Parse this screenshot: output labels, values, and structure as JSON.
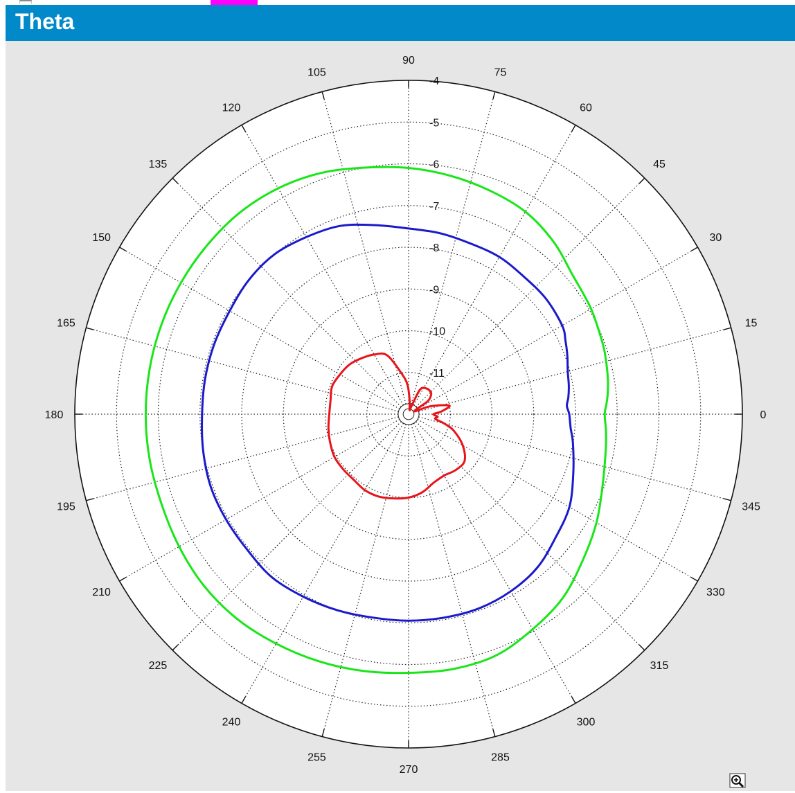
{
  "header": {
    "title": "Theta"
  },
  "toolbar": {
    "zoom_icon": "zoom-in-icon"
  },
  "colors": {
    "header_bg": "#0189c9",
    "panel_bg": "#e6e6e6",
    "red": "#e8141a",
    "blue": "#1a1acc",
    "green": "#19e619"
  },
  "chart_data": {
    "type": "polar",
    "title": "Theta",
    "angle_unit": "degrees",
    "angle_ticks": [
      0,
      15,
      30,
      45,
      60,
      75,
      90,
      105,
      120,
      135,
      150,
      165,
      180,
      195,
      210,
      225,
      240,
      255,
      270,
      285,
      300,
      315,
      330,
      345
    ],
    "radial_range": [
      -12,
      -4
    ],
    "radial_ticks": [
      -4,
      -5,
      -6,
      -7,
      -8,
      -9,
      -10,
      -11
    ],
    "grid": true,
    "series": [
      {
        "color": "#e8141a",
        "points": [
          [
            0,
            -11.4
          ],
          [
            5,
            -11.2
          ],
          [
            12,
            -11.0
          ],
          [
            20,
            -11.45
          ],
          [
            27,
            -11.85
          ],
          [
            34,
            -11.45
          ],
          [
            40,
            -11.3
          ],
          [
            45,
            -11.25
          ],
          [
            55,
            -11.25
          ],
          [
            65,
            -11.35
          ],
          [
            70,
            -11.8
          ],
          [
            77,
            -11.9
          ],
          [
            85,
            -11.7
          ],
          [
            92,
            -11.3
          ],
          [
            100,
            -11.0
          ],
          [
            110,
            -10.5
          ],
          [
            120,
            -10.35
          ],
          [
            130,
            -10.25
          ],
          [
            140,
            -10.15
          ],
          [
            150,
            -10.1
          ],
          [
            160,
            -10.05
          ],
          [
            170,
            -10.1
          ],
          [
            180,
            -10.1
          ],
          [
            190,
            -10.05
          ],
          [
            200,
            -10.0
          ],
          [
            210,
            -9.95
          ],
          [
            220,
            -9.95
          ],
          [
            230,
            -9.95
          ],
          [
            240,
            -9.9
          ],
          [
            250,
            -9.9
          ],
          [
            260,
            -9.95
          ],
          [
            270,
            -10.0
          ],
          [
            280,
            -10.1
          ],
          [
            290,
            -10.25
          ],
          [
            300,
            -10.3
          ],
          [
            310,
            -10.25
          ],
          [
            320,
            -10.25
          ],
          [
            330,
            -10.5
          ],
          [
            340,
            -10.85
          ],
          [
            345,
            -11.1
          ],
          [
            350,
            -11.35
          ],
          [
            355,
            -11.3
          ],
          [
            360,
            -11.4
          ]
        ]
      },
      {
        "color": "#1a1acc",
        "points": [
          [
            0,
            -8.15
          ],
          [
            3,
            -8.2
          ],
          [
            6,
            -8.15
          ],
          [
            10,
            -8.1
          ],
          [
            15,
            -8.05
          ],
          [
            20,
            -7.95
          ],
          [
            25,
            -7.85
          ],
          [
            30,
            -7.75
          ],
          [
            40,
            -7.7
          ],
          [
            50,
            -7.7
          ],
          [
            60,
            -7.65
          ],
          [
            70,
            -7.65
          ],
          [
            80,
            -7.6
          ],
          [
            90,
            -7.55
          ],
          [
            100,
            -7.4
          ],
          [
            110,
            -7.2
          ],
          [
            120,
            -7.1
          ],
          [
            130,
            -7.0
          ],
          [
            140,
            -7.0
          ],
          [
            150,
            -7.05
          ],
          [
            160,
            -7.05
          ],
          [
            170,
            -7.05
          ],
          [
            180,
            -7.05
          ],
          [
            190,
            -7.0
          ],
          [
            200,
            -6.95
          ],
          [
            210,
            -6.95
          ],
          [
            220,
            -6.95
          ],
          [
            230,
            -6.9
          ],
          [
            240,
            -6.95
          ],
          [
            250,
            -7.0
          ],
          [
            260,
            -7.05
          ],
          [
            270,
            -7.05
          ],
          [
            280,
            -7.05
          ],
          [
            290,
            -7.05
          ],
          [
            300,
            -7.1
          ],
          [
            310,
            -7.2
          ],
          [
            320,
            -7.4
          ],
          [
            330,
            -7.55
          ],
          [
            340,
            -7.8
          ],
          [
            350,
            -8.0
          ],
          [
            355,
            -8.1
          ],
          [
            360,
            -8.15
          ]
        ]
      },
      {
        "color": "#19e619",
        "points": [
          [
            0,
            -7.3
          ],
          [
            3,
            -7.25
          ],
          [
            6,
            -7.2
          ],
          [
            10,
            -7.15
          ],
          [
            15,
            -7.1
          ],
          [
            20,
            -7.05
          ],
          [
            30,
            -6.95
          ],
          [
            40,
            -6.85
          ],
          [
            50,
            -6.6
          ],
          [
            60,
            -6.4
          ],
          [
            70,
            -6.3
          ],
          [
            80,
            -6.2
          ],
          [
            90,
            -6.1
          ],
          [
            100,
            -6.0
          ],
          [
            110,
            -5.85
          ],
          [
            120,
            -5.75
          ],
          [
            130,
            -5.7
          ],
          [
            140,
            -5.7
          ],
          [
            150,
            -5.7
          ],
          [
            160,
            -5.7
          ],
          [
            170,
            -5.7
          ],
          [
            180,
            -5.7
          ],
          [
            190,
            -5.7
          ],
          [
            200,
            -5.7
          ],
          [
            210,
            -5.65
          ],
          [
            220,
            -5.6
          ],
          [
            230,
            -5.6
          ],
          [
            240,
            -5.65
          ],
          [
            250,
            -5.7
          ],
          [
            260,
            -5.75
          ],
          [
            270,
            -5.8
          ],
          [
            280,
            -5.8
          ],
          [
            290,
            -5.85
          ],
          [
            300,
            -6.05
          ],
          [
            310,
            -6.25
          ],
          [
            320,
            -6.55
          ],
          [
            330,
            -6.8
          ],
          [
            340,
            -7.05
          ],
          [
            350,
            -7.2
          ],
          [
            355,
            -7.25
          ],
          [
            360,
            -7.3
          ]
        ]
      }
    ]
  }
}
